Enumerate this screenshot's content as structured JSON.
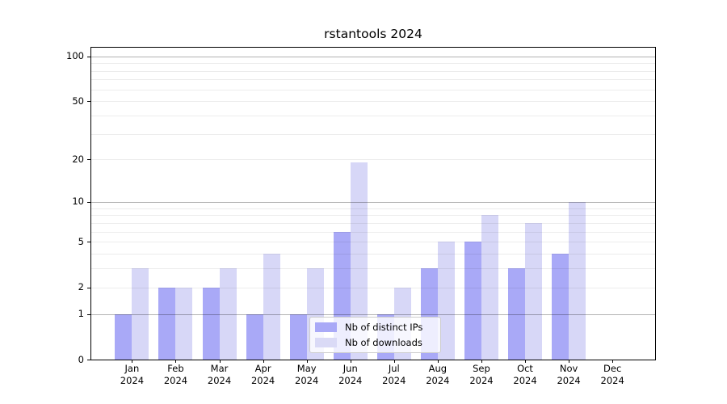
{
  "chart_data": {
    "type": "bar",
    "title": "rstantools 2024",
    "categories": [
      "Jan 2024",
      "Feb 2024",
      "Mar 2024",
      "Apr 2024",
      "May 2024",
      "Jun 2024",
      "Jul 2024",
      "Aug 2024",
      "Sep 2024",
      "Oct 2024",
      "Nov 2024",
      "Dec 2024"
    ],
    "series": [
      {
        "name": "Nb of distinct IPs",
        "color": "#a9a9f7",
        "fill": "rgba(136,136,244,0.72)",
        "values": [
          1,
          2,
          2,
          1,
          1,
          6,
          1,
          3,
          5,
          3,
          4,
          0
        ]
      },
      {
        "name": "Nb of downloads",
        "color": "#dadaf6",
        "fill": "rgba(149,149,235,0.38)",
        "values": [
          3,
          2,
          3,
          4,
          3,
          19,
          2,
          5,
          8,
          7,
          10,
          0
        ]
      }
    ],
    "xlabel": "",
    "ylabel": "",
    "yscale": "log1p",
    "ylim": [
      0,
      114
    ],
    "yticks": [
      0,
      1,
      2,
      5,
      10,
      20,
      50,
      100
    ],
    "major_gridlines": [
      1,
      10,
      100
    ],
    "minor_gridlines": [
      2,
      3,
      4,
      5,
      6,
      7,
      8,
      9,
      20,
      30,
      40,
      50,
      60,
      70,
      80,
      90
    ],
    "grid": "on",
    "legend_position": "lower center"
  }
}
